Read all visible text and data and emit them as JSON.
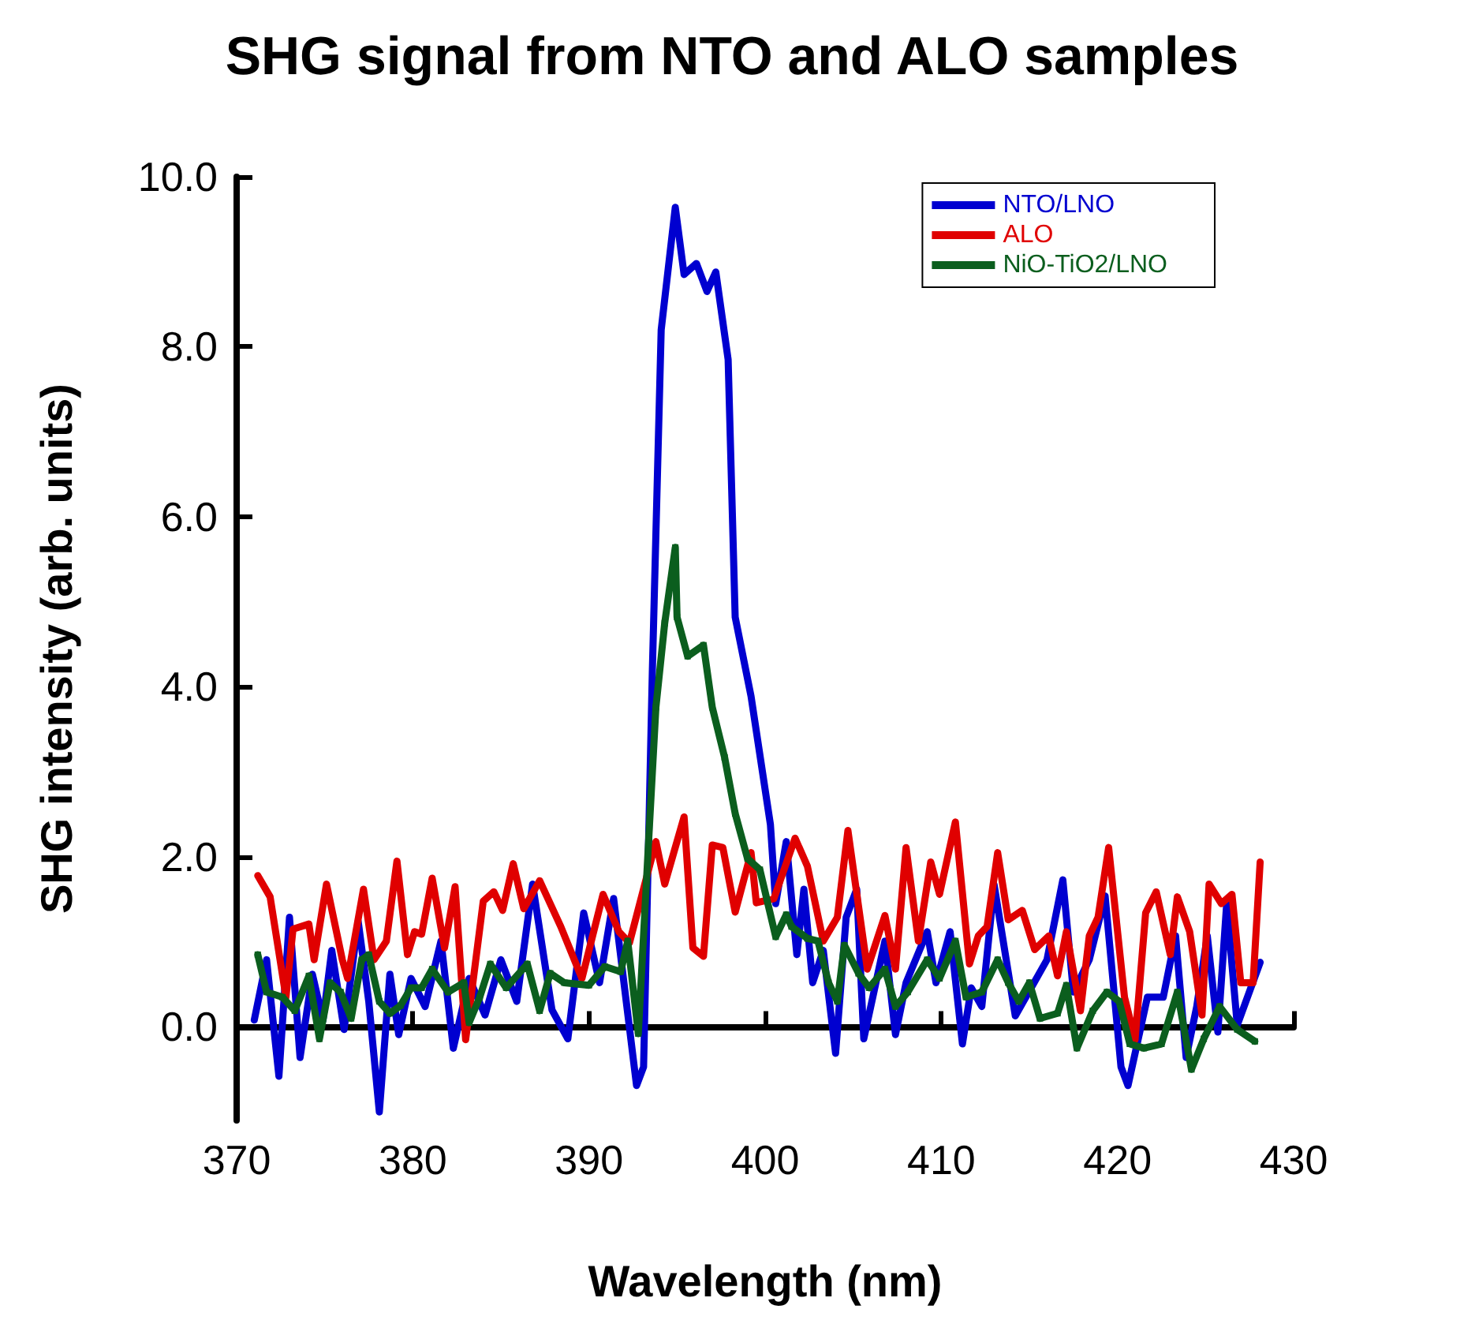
{
  "chart_data": {
    "type": "line",
    "title": "SHG signal from NTO and ALO samples",
    "xlabel": "Wavelength (nm)",
    "ylabel": "SHG intensity (arb. units)",
    "xlim": [
      370,
      430
    ],
    "xticks": [
      370,
      380,
      390,
      400,
      410,
      420,
      430
    ],
    "ylim": [
      -1.1,
      10
    ],
    "yticks": [
      {
        "value": 0,
        "label": "0.0"
      },
      {
        "value": 2,
        "label": "2.0"
      },
      {
        "value": 4,
        "label": "4.0"
      },
      {
        "value": 6,
        "label": "6.0"
      },
      {
        "value": 8,
        "label": "8.0"
      },
      {
        "value": 10,
        "label": "10.0"
      }
    ],
    "legend": "top right",
    "line_style": "solid",
    "series": [
      {
        "name": "NTO/LNO",
        "color": "#0000d0",
        "marker": "none",
        "x": [
          371.0,
          371.7,
          372.4,
          373.0,
          373.6,
          374.3,
          374.9,
          375.4,
          376.1,
          376.9,
          377.5,
          378.1,
          378.7,
          379.2,
          379.9,
          380.7,
          381.6,
          382.3,
          383.2,
          384.1,
          385.0,
          385.9,
          386.8,
          387.9,
          388.8,
          389.7,
          390.6,
          391.4,
          392.7,
          393.1,
          393.6,
          394.1,
          394.9,
          395.4,
          396.1,
          396.7,
          397.2,
          397.9,
          398.3,
          399.2,
          400.3,
          400.6,
          401.2,
          401.8,
          402.2,
          402.7,
          403.3,
          404.0,
          404.6,
          405.2,
          405.6,
          406.8,
          407.4,
          408.0,
          409.2,
          409.7,
          410.5,
          411.2,
          411.7,
          412.3,
          413.0,
          414.2,
          415.1,
          416.0,
          416.9,
          417.5,
          418.4,
          419.3,
          420.2,
          420.6,
          421.7,
          422.6,
          423.3,
          423.9,
          424.5,
          425.1,
          425.7,
          426.2,
          426.8,
          428.1
        ],
        "values": [
          0.08,
          0.79,
          -0.58,
          1.29,
          -0.36,
          0.62,
          0.08,
          0.9,
          -0.03,
          1.24,
          0.3,
          -1.0,
          0.62,
          -0.09,
          0.57,
          0.24,
          1.01,
          -0.25,
          0.57,
          0.14,
          0.79,
          0.3,
          1.68,
          0.2,
          -0.14,
          1.34,
          0.52,
          1.51,
          -0.69,
          -0.47,
          4.2,
          8.2,
          9.64,
          8.85,
          8.98,
          8.65,
          8.88,
          7.85,
          4.82,
          3.89,
          2.38,
          1.45,
          2.18,
          0.85,
          1.62,
          0.52,
          0.9,
          -0.31,
          1.29,
          1.62,
          -0.14,
          1.01,
          -0.09,
          0.52,
          1.12,
          0.52,
          1.12,
          -0.2,
          0.46,
          0.24,
          1.67,
          0.13,
          0.46,
          0.79,
          1.73,
          0.41,
          0.79,
          1.54,
          -0.47,
          -0.69,
          0.35,
          0.35,
          1.07,
          -0.36,
          0.24,
          1.07,
          -0.06,
          1.45,
          0.02,
          0.76
        ]
      },
      {
        "name": "ALO",
        "color": "#e00000",
        "marker": "none",
        "x": [
          371.2,
          371.9,
          372.8,
          373.2,
          374.1,
          374.4,
          375.1,
          376.0,
          376.3,
          377.2,
          377.8,
          378.5,
          379.1,
          379.7,
          380.1,
          380.5,
          381.1,
          381.8,
          382.4,
          383.0,
          384.0,
          384.6,
          385.1,
          385.7,
          386.3,
          387.2,
          388.4,
          389.6,
          390.8,
          391.7,
          392.3,
          393.8,
          394.3,
          395.4,
          395.9,
          396.5,
          397.0,
          397.6,
          398.3,
          399.2,
          399.5,
          400.5,
          401.7,
          402.4,
          403.3,
          404.1,
          404.7,
          405.8,
          406.8,
          407.4,
          408.0,
          408.7,
          409.4,
          409.9,
          410.8,
          411.6,
          412.1,
          412.6,
          413.2,
          413.8,
          414.6,
          415.3,
          416.1,
          416.6,
          417.1,
          417.9,
          418.4,
          418.9,
          419.5,
          420.4,
          421.0,
          421.6,
          422.2,
          423.0,
          423.4,
          424.1,
          424.8,
          425.2,
          425.9,
          426.5,
          427.0,
          427.7,
          428.1
        ],
        "values": [
          1.78,
          1.53,
          0.35,
          1.15,
          1.21,
          0.79,
          1.68,
          0.79,
          0.57,
          1.62,
          0.79,
          1.01,
          1.95,
          0.85,
          1.12,
          1.09,
          1.75,
          0.93,
          1.65,
          -0.15,
          1.48,
          1.59,
          1.37,
          1.92,
          1.39,
          1.72,
          1.18,
          0.57,
          1.56,
          1.12,
          0.99,
          2.18,
          1.68,
          2.47,
          0.93,
          0.83,
          2.14,
          2.11,
          1.35,
          2.05,
          1.46,
          1.51,
          2.22,
          1.89,
          1.01,
          1.29,
          2.31,
          0.68,
          1.31,
          0.68,
          2.11,
          1.01,
          1.94,
          1.56,
          2.41,
          0.74,
          1.07,
          1.18,
          2.05,
          1.26,
          1.37,
          0.91,
          1.07,
          0.6,
          1.12,
          0.19,
          1.07,
          1.29,
          2.11,
          0.35,
          -0.15,
          1.34,
          1.59,
          0.85,
          1.53,
          1.12,
          0.14,
          1.68,
          1.45,
          1.56,
          0.52,
          0.52,
          1.94
        ]
      },
      {
        "name": "NiO-TiO2/LNO",
        "color": "#0b5e1e",
        "marker": "square",
        "x": [
          371.2,
          371.7,
          372.6,
          373.3,
          374.1,
          374.7,
          375.3,
          375.9,
          376.5,
          377.1,
          377.5,
          378.1,
          378.7,
          379.3,
          379.9,
          380.5,
          381.1,
          382.0,
          382.9,
          383.2,
          383.8,
          384.4,
          385.3,
          386.5,
          387.2,
          387.8,
          388.6,
          390.0,
          390.9,
          391.8,
          392.2,
          392.8,
          393.4,
          393.8,
          394.3,
          394.9,
          395.0,
          395.6,
          396.5,
          397.0,
          397.7,
          398.3,
          399.0,
          399.7,
          400.6,
          401.2,
          401.5,
          402.4,
          403.0,
          403.6,
          404.1,
          404.5,
          405.3,
          405.9,
          406.8,
          407.4,
          408.1,
          409.2,
          409.9,
          410.8,
          411.4,
          412.3,
          413.2,
          413.8,
          414.4,
          415.0,
          415.6,
          416.6,
          417.1,
          417.7,
          418.6,
          419.4,
          420.1,
          420.7,
          421.5,
          422.5,
          423.4,
          424.2,
          424.9,
          425.8,
          426.8,
          427.8
        ],
        "values": [
          0.85,
          0.41,
          0.35,
          0.19,
          0.6,
          -0.14,
          0.52,
          0.41,
          0.1,
          0.79,
          0.85,
          0.3,
          0.16,
          0.25,
          0.46,
          0.46,
          0.68,
          0.41,
          0.52,
          0.05,
          0.35,
          0.74,
          0.46,
          0.74,
          0.19,
          0.63,
          0.52,
          0.49,
          0.71,
          0.65,
          1.01,
          -0.08,
          2.24,
          3.76,
          4.75,
          5.64,
          4.82,
          4.36,
          4.49,
          3.76,
          3.17,
          2.51,
          1.98,
          1.85,
          1.06,
          1.32,
          1.18,
          1.04,
          1.01,
          0.52,
          0.3,
          0.96,
          0.63,
          0.46,
          0.68,
          0.24,
          0.41,
          0.79,
          0.57,
          1.01,
          0.35,
          0.41,
          0.79,
          0.52,
          0.3,
          0.52,
          0.1,
          0.16,
          0.49,
          -0.25,
          0.19,
          0.41,
          0.3,
          -0.2,
          -0.25,
          -0.2,
          0.41,
          -0.5,
          -0.14,
          0.24,
          -0.03,
          -0.17
        ]
      }
    ]
  }
}
